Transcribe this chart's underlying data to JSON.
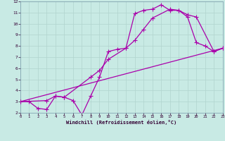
{
  "xlabel": "Windchill (Refroidissement éolien,°C)",
  "xlim": [
    0,
    23
  ],
  "ylim": [
    2,
    12
  ],
  "xticks": [
    0,
    1,
    2,
    3,
    4,
    5,
    6,
    7,
    8,
    9,
    10,
    11,
    12,
    13,
    14,
    15,
    16,
    17,
    18,
    19,
    20,
    21,
    22,
    23
  ],
  "yticks": [
    2,
    3,
    4,
    5,
    6,
    7,
    8,
    9,
    10,
    11,
    12
  ],
  "background_color": "#c8eae4",
  "grid_color": "#b0d4ce",
  "line_color": "#aa00aa",
  "line1_x": [
    0,
    1,
    2,
    3,
    4,
    5,
    6,
    7,
    8,
    9,
    10,
    11,
    12,
    13,
    14,
    15,
    16,
    17,
    18,
    19,
    20,
    21,
    22,
    23
  ],
  "line1_y": [
    3.0,
    3.0,
    2.4,
    2.3,
    3.5,
    3.4,
    3.1,
    1.8,
    3.5,
    5.2,
    7.5,
    7.7,
    7.8,
    10.9,
    11.2,
    11.3,
    11.7,
    11.2,
    11.2,
    10.6,
    8.3,
    8.0,
    7.5,
    7.8
  ],
  "line2_x": [
    0,
    3,
    4,
    5,
    8,
    9,
    10,
    12,
    13,
    14,
    15,
    17,
    18,
    19,
    20,
    22,
    23
  ],
  "line2_y": [
    3.0,
    3.1,
    3.5,
    3.4,
    5.2,
    5.8,
    6.8,
    7.8,
    8.5,
    9.5,
    10.5,
    11.3,
    11.2,
    10.8,
    10.6,
    7.5,
    7.8
  ],
  "line3_x": [
    0,
    23
  ],
  "line3_y": [
    3.0,
    7.8
  ],
  "marker": "+",
  "marker_size": 4,
  "linewidth": 0.9
}
